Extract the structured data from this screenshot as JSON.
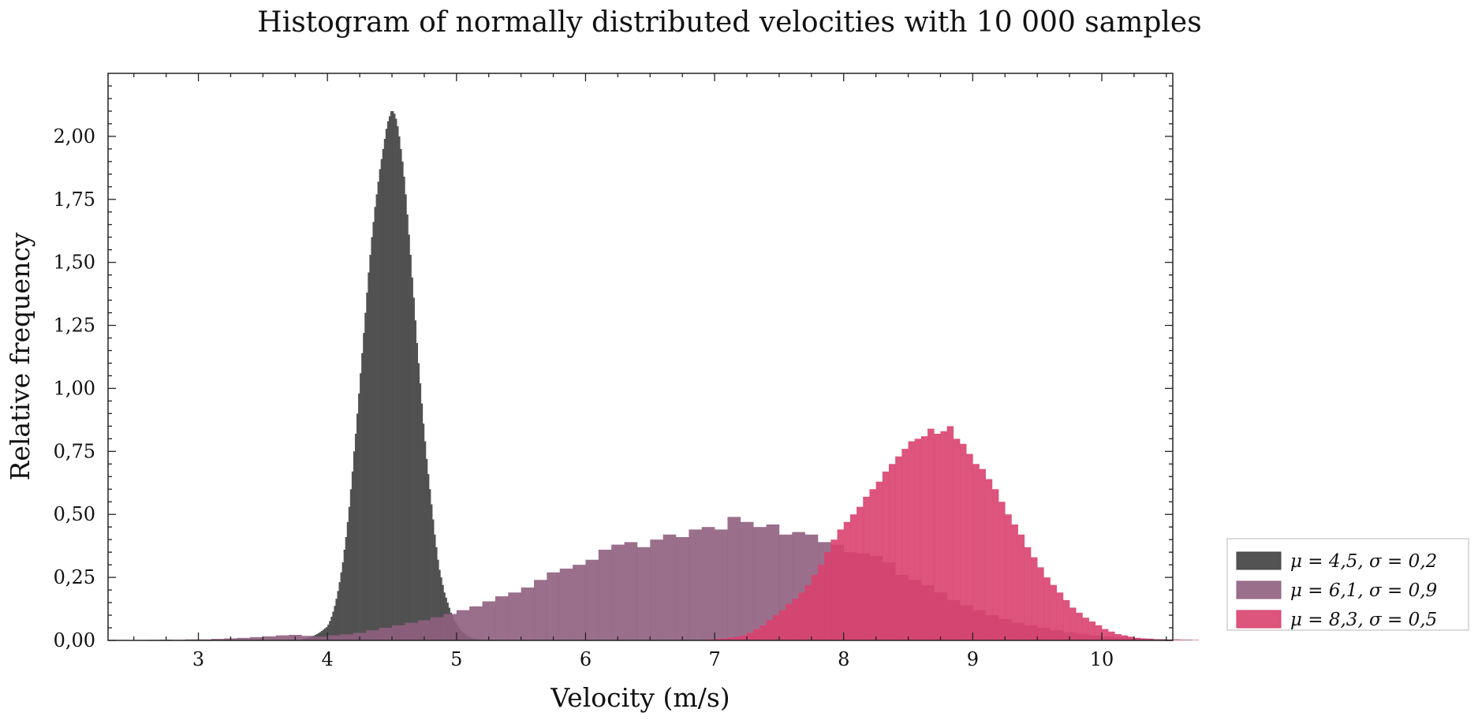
{
  "chart_data": {
    "type": "bar",
    "title": "Histogram of normally distributed velocities with 10 000 samples",
    "xlabel": "Velocity (m/s)",
    "ylabel": "Relative frequency",
    "xlim": [
      2.3,
      10.55
    ],
    "ylim": [
      0,
      2.25
    ],
    "x_ticks": [
      3,
      4,
      5,
      6,
      7,
      8,
      9,
      10
    ],
    "y_ticks": [
      "0,00",
      "0,25",
      "0,50",
      "0,75",
      "1,00",
      "1,25",
      "1,50",
      "1,75",
      "2,00"
    ],
    "grid": false,
    "legend_position": "outside-bottom-right",
    "series": [
      {
        "name": "μ = 4,5, σ = 0,2",
        "color": "#404040",
        "bin_start": 3.8,
        "bin_width": 0.0125,
        "values": [
          0.005,
          0.006,
          0.008,
          0.01,
          0.012,
          0.014,
          0.016,
          0.019,
          0.022,
          0.025,
          0.029,
          0.033,
          0.038,
          0.043,
          0.048,
          0.053,
          0.063,
          0.077,
          0.094,
          0.114,
          0.137,
          0.165,
          0.196,
          0.231,
          0.27,
          0.31,
          0.36,
          0.41,
          0.47,
          0.53,
          0.6,
          0.67,
          0.75,
          0.82,
          0.9,
          0.98,
          1.06,
          1.14,
          1.22,
          1.3,
          1.38,
          1.46,
          1.53,
          1.6,
          1.66,
          1.72,
          1.77,
          1.82,
          1.87,
          1.91,
          1.95,
          1.99,
          2.03,
          2.06,
          2.08,
          2.1,
          2.1,
          2.09,
          2.07,
          2.04,
          2.0,
          1.95,
          1.9,
          1.84,
          1.77,
          1.69,
          1.61,
          1.53,
          1.44,
          1.36,
          1.27,
          1.18,
          1.1,
          1.02,
          0.94,
          0.86,
          0.79,
          0.72,
          0.66,
          0.6,
          0.54,
          0.48,
          0.42,
          0.37,
          0.32,
          0.28,
          0.25,
          0.22,
          0.19,
          0.17,
          0.15,
          0.13,
          0.11,
          0.1,
          0.08,
          0.07,
          0.06,
          0.05,
          0.04,
          0.035,
          0.03,
          0.025,
          0.02,
          0.015,
          0.012,
          0.01,
          0.008,
          0.006,
          0.005,
          0.004,
          0.003,
          0.002
        ]
      },
      {
        "name": "μ = 6,1, σ = 0,9",
        "color": "#8f5f80",
        "bin_start": 2.6,
        "bin_width": 0.1,
        "values": [
          0.002,
          0.003,
          0.002,
          0.004,
          0.004,
          0.006,
          0.008,
          0.01,
          0.013,
          0.016,
          0.02,
          0.022,
          0.018,
          0.015,
          0.02,
          0.024,
          0.03,
          0.04,
          0.05,
          0.06,
          0.07,
          0.08,
          0.092,
          0.105,
          0.12,
          0.135,
          0.155,
          0.175,
          0.19,
          0.21,
          0.24,
          0.27,
          0.285,
          0.3,
          0.32,
          0.36,
          0.38,
          0.39,
          0.37,
          0.4,
          0.42,
          0.41,
          0.44,
          0.45,
          0.44,
          0.49,
          0.47,
          0.45,
          0.46,
          0.42,
          0.43,
          0.42,
          0.39,
          0.38,
          0.35,
          0.345,
          0.335,
          0.31,
          0.26,
          0.24,
          0.22,
          0.19,
          0.16,
          0.14,
          0.12,
          0.1,
          0.085,
          0.07,
          0.06,
          0.05,
          0.04,
          0.032,
          0.025,
          0.02,
          0.015,
          0.012,
          0.009,
          0.007,
          0.005,
          0.004,
          0.003
        ]
      },
      {
        "name": "μ = 8,3, σ = 0,5",
        "color": "#d9416f",
        "bin_start": 6.9,
        "bin_width": 0.05,
        "values": [
          0.003,
          0.004,
          0.006,
          0.008,
          0.011,
          0.015,
          0.02,
          0.03,
          0.045,
          0.06,
          0.08,
          0.1,
          0.12,
          0.145,
          0.165,
          0.19,
          0.22,
          0.26,
          0.3,
          0.35,
          0.4,
          0.44,
          0.47,
          0.5,
          0.53,
          0.57,
          0.6,
          0.63,
          0.67,
          0.7,
          0.73,
          0.76,
          0.79,
          0.8,
          0.81,
          0.84,
          0.82,
          0.83,
          0.85,
          0.8,
          0.78,
          0.74,
          0.7,
          0.68,
          0.64,
          0.6,
          0.55,
          0.5,
          0.46,
          0.42,
          0.37,
          0.33,
          0.29,
          0.25,
          0.22,
          0.19,
          0.16,
          0.13,
          0.11,
          0.09,
          0.075,
          0.06,
          0.045,
          0.035,
          0.025,
          0.02,
          0.015,
          0.01,
          0.008,
          0.006,
          0.004,
          0.003,
          0.002,
          0.002,
          0.002,
          0.001,
          0.002
        ]
      }
    ]
  }
}
